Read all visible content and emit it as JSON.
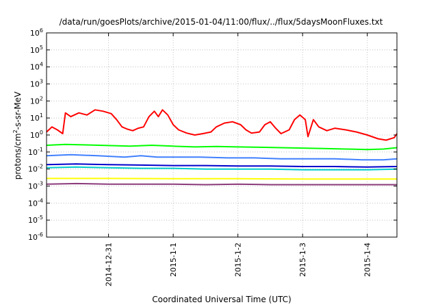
{
  "chart_data": {
    "type": "line",
    "title": "/data/run/goesPlots/archive/2015-01-04/11:00/flux/../flux/5daysMoonFluxes.txt",
    "xlabel": "Coordinated Universal Time (UTC)",
    "ylabel": {
      "base": "protons/cm",
      "sup": "2",
      "rest": "-s-sr-MeV"
    },
    "y_scale": "log",
    "ylim_exponent": [
      -6,
      6
    ],
    "y_ticks": [
      {
        "base": "10",
        "exp": "-6",
        "value": -6
      },
      {
        "base": "10",
        "exp": "-5",
        "value": -5
      },
      {
        "base": "10",
        "exp": "-4",
        "value": -4
      },
      {
        "base": "10",
        "exp": "-3",
        "value": -3
      },
      {
        "base": "10",
        "exp": "-2",
        "value": -2
      },
      {
        "base": "10",
        "exp": "-1",
        "value": -1
      },
      {
        "base": "10",
        "exp": "0",
        "value": 0
      },
      {
        "base": "10",
        "exp": "1",
        "value": 1
      },
      {
        "base": "10",
        "exp": "2",
        "value": 2
      },
      {
        "base": "10",
        "exp": "3",
        "value": 3
      },
      {
        "base": "10",
        "exp": "4",
        "value": 4
      },
      {
        "base": "10",
        "exp": "5",
        "value": 5
      },
      {
        "base": "10",
        "exp": "6",
        "value": 6
      }
    ],
    "x_range_days": [
      "2014-12-30T01:00",
      "2015-01-04T11:00"
    ],
    "x_ticks": [
      {
        "label": "2014-12-31",
        "date": "2014-12-31"
      },
      {
        "label": "2015-1-1",
        "date": "2015-01-01"
      },
      {
        "label": "2015-1-2",
        "date": "2015-01-02"
      },
      {
        "label": "2015-1-3",
        "date": "2015-01-03"
      },
      {
        "label": "2015-1-4",
        "date": "2015-01-04"
      }
    ],
    "grid": true,
    "legend": "none",
    "series": [
      {
        "color": "#ff0000",
        "points": [
          [
            "2014-12-30T01:00",
            1.5
          ],
          [
            "2014-12-30T03:00",
            3
          ],
          [
            "2014-12-30T05:00",
            2
          ],
          [
            "2014-12-30T07:00",
            1.2
          ],
          [
            "2014-12-30T08:00",
            20
          ],
          [
            "2014-12-30T10:00",
            12
          ],
          [
            "2014-12-30T13:00",
            20
          ],
          [
            "2014-12-30T16:00",
            15
          ],
          [
            "2014-12-30T19:00",
            30
          ],
          [
            "2014-12-30T22:00",
            25
          ],
          [
            "2014-12-31T01:00",
            18
          ],
          [
            "2014-12-31T03:00",
            8
          ],
          [
            "2014-12-31T05:00",
            3
          ],
          [
            "2014-12-31T07:00",
            2.2
          ],
          [
            "2014-12-31T09:00",
            1.8
          ],
          [
            "2014-12-31T11:00",
            2.5
          ],
          [
            "2014-12-31T13:00",
            3
          ],
          [
            "2014-12-31T15:00",
            12
          ],
          [
            "2014-12-31T17:00",
            25
          ],
          [
            "2014-12-31T18:30",
            12
          ],
          [
            "2014-12-31T20:00",
            30
          ],
          [
            "2014-12-31T22:00",
            15
          ],
          [
            "2015-01-01T00:00",
            4
          ],
          [
            "2015-01-01T02:00",
            2
          ],
          [
            "2015-01-01T05:00",
            1.3
          ],
          [
            "2015-01-01T08:00",
            1
          ],
          [
            "2015-01-01T11:00",
            1.2
          ],
          [
            "2015-01-01T14:00",
            1.5
          ],
          [
            "2015-01-01T16:00",
            3
          ],
          [
            "2015-01-01T19:00",
            5
          ],
          [
            "2015-01-01T22:00",
            6
          ],
          [
            "2015-01-02T01:00",
            4
          ],
          [
            "2015-01-02T03:00",
            2
          ],
          [
            "2015-01-02T05:00",
            1.3
          ],
          [
            "2015-01-02T08:00",
            1.5
          ],
          [
            "2015-01-02T10:00",
            4
          ],
          [
            "2015-01-02T12:00",
            6
          ],
          [
            "2015-01-02T14:00",
            2.5
          ],
          [
            "2015-01-02T16:00",
            1.2
          ],
          [
            "2015-01-02T19:00",
            2
          ],
          [
            "2015-01-02T21:00",
            8
          ],
          [
            "2015-01-02T23:00",
            15
          ],
          [
            "2015-01-03T01:00",
            8
          ],
          [
            "2015-01-03T02:00",
            0.8
          ],
          [
            "2015-01-03T04:00",
            8
          ],
          [
            "2015-01-03T06:00",
            3
          ],
          [
            "2015-01-03T09:00",
            1.8
          ],
          [
            "2015-01-03T12:00",
            2.5
          ],
          [
            "2015-01-03T16:00",
            2
          ],
          [
            "2015-01-03T20:00",
            1.5
          ],
          [
            "2015-01-04T00:00",
            1
          ],
          [
            "2015-01-04T04:00",
            0.6
          ],
          [
            "2015-01-04T07:00",
            0.5
          ],
          [
            "2015-01-04T10:00",
            0.7
          ],
          [
            "2015-01-04T11:00",
            1.2
          ]
        ]
      },
      {
        "color": "#00ff00",
        "points": [
          [
            "2014-12-30T01:00",
            0.25
          ],
          [
            "2014-12-30T08:00",
            0.28
          ],
          [
            "2014-12-30T16:00",
            0.26
          ],
          [
            "2014-12-31T00:00",
            0.24
          ],
          [
            "2014-12-31T08:00",
            0.22
          ],
          [
            "2014-12-31T16:00",
            0.25
          ],
          [
            "2015-01-01T00:00",
            0.22
          ],
          [
            "2015-01-01T08:00",
            0.2
          ],
          [
            "2015-01-01T16:00",
            0.21
          ],
          [
            "2015-01-02T00:00",
            0.2
          ],
          [
            "2015-01-02T08:00",
            0.19
          ],
          [
            "2015-01-02T16:00",
            0.18
          ],
          [
            "2015-01-03T00:00",
            0.17
          ],
          [
            "2015-01-03T08:00",
            0.16
          ],
          [
            "2015-01-03T16:00",
            0.15
          ],
          [
            "2015-01-04T00:00",
            0.14
          ],
          [
            "2015-01-04T06:00",
            0.15
          ],
          [
            "2015-01-04T11:00",
            0.18
          ]
        ]
      },
      {
        "color": "#3f7fff",
        "points": [
          [
            "2014-12-30T01:00",
            0.06
          ],
          [
            "2014-12-30T10:00",
            0.07
          ],
          [
            "2014-12-30T20:00",
            0.06
          ],
          [
            "2014-12-31T06:00",
            0.05
          ],
          [
            "2014-12-31T12:00",
            0.06
          ],
          [
            "2014-12-31T18:00",
            0.05
          ],
          [
            "2015-01-01T00:00",
            0.05
          ],
          [
            "2015-01-01T10:00",
            0.05
          ],
          [
            "2015-01-01T20:00",
            0.045
          ],
          [
            "2015-01-02T06:00",
            0.045
          ],
          [
            "2015-01-02T16:00",
            0.04
          ],
          [
            "2015-01-03T02:00",
            0.04
          ],
          [
            "2015-01-03T12:00",
            0.04
          ],
          [
            "2015-01-03T22:00",
            0.035
          ],
          [
            "2015-01-04T06:00",
            0.035
          ],
          [
            "2015-01-04T11:00",
            0.04
          ]
        ]
      },
      {
        "color": "#00cccc",
        "points": [
          [
            "2014-12-30T01:00",
            0.012
          ],
          [
            "2014-12-30T12:00",
            0.013
          ],
          [
            "2014-12-31T00:00",
            0.012
          ],
          [
            "2014-12-31T12:00",
            0.011
          ],
          [
            "2015-01-01T00:00",
            0.011
          ],
          [
            "2015-01-01T12:00",
            0.01
          ],
          [
            "2015-01-02T00:00",
            0.01
          ],
          [
            "2015-01-02T12:00",
            0.01
          ],
          [
            "2015-01-03T00:00",
            0.009
          ],
          [
            "2015-01-03T12:00",
            0.009
          ],
          [
            "2015-01-04T00:00",
            0.009
          ],
          [
            "2015-01-04T11:00",
            0.01
          ]
        ]
      },
      {
        "color": "#0000cc",
        "points": [
          [
            "2014-12-30T01:00",
            0.018
          ],
          [
            "2014-12-30T12:00",
            0.02
          ],
          [
            "2014-12-31T00:00",
            0.018
          ],
          [
            "2014-12-31T12:00",
            0.017
          ],
          [
            "2015-01-01T00:00",
            0.016
          ],
          [
            "2015-01-01T12:00",
            0.016
          ],
          [
            "2015-01-02T00:00",
            0.015
          ],
          [
            "2015-01-02T12:00",
            0.015
          ],
          [
            "2015-01-03T00:00",
            0.014
          ],
          [
            "2015-01-03T12:00",
            0.014
          ],
          [
            "2015-01-04T00:00",
            0.013
          ],
          [
            "2015-01-04T11:00",
            0.014
          ]
        ]
      },
      {
        "color": "#ffff00",
        "points": [
          [
            "2014-12-30T01:00",
            0.0028
          ],
          [
            "2014-12-31T00:00",
            0.0028
          ],
          [
            "2015-01-01T00:00",
            0.0027
          ],
          [
            "2015-01-02T00:00",
            0.0027
          ],
          [
            "2015-01-03T00:00",
            0.0026
          ],
          [
            "2015-01-04T00:00",
            0.0026
          ],
          [
            "2015-01-04T11:00",
            0.0026
          ]
        ]
      },
      {
        "color": "#8b3a7a",
        "points": [
          [
            "2014-12-30T01:00",
            0.0013
          ],
          [
            "2014-12-30T12:00",
            0.0014
          ],
          [
            "2014-12-31T00:00",
            0.0013
          ],
          [
            "2014-12-31T12:00",
            0.0013
          ],
          [
            "2015-01-01T00:00",
            0.0013
          ],
          [
            "2015-01-01T12:00",
            0.0012
          ],
          [
            "2015-01-02T00:00",
            0.0013
          ],
          [
            "2015-01-02T12:00",
            0.0012
          ],
          [
            "2015-01-03T00:00",
            0.0012
          ],
          [
            "2015-01-03T12:00",
            0.0012
          ],
          [
            "2015-01-04T00:00",
            0.0012
          ],
          [
            "2015-01-04T11:00",
            0.0012
          ]
        ]
      }
    ]
  }
}
